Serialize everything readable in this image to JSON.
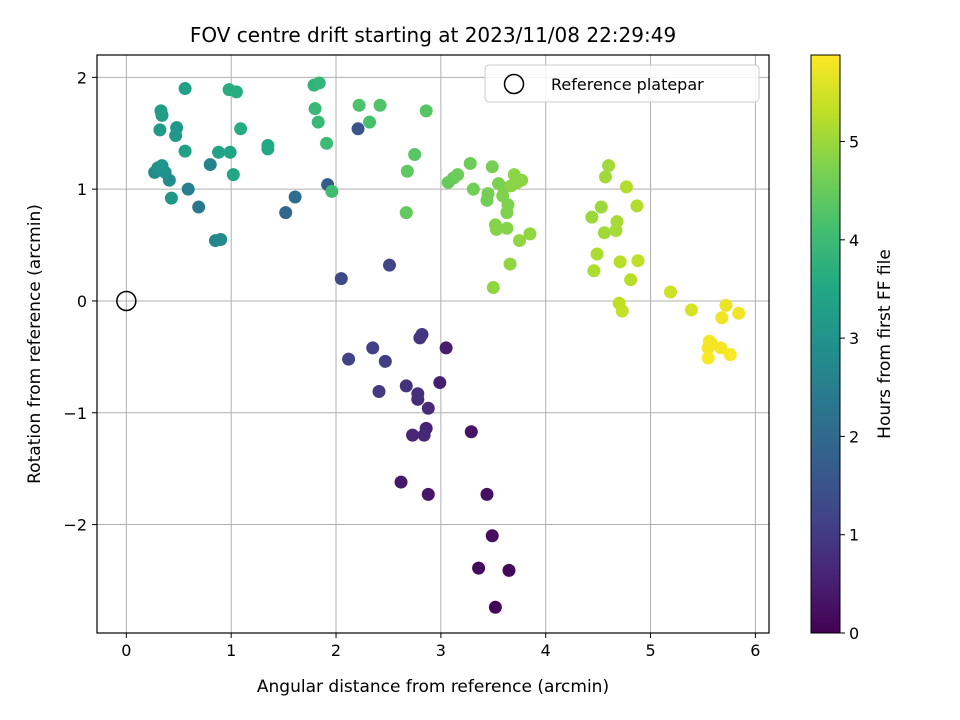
{
  "chart_data": {
    "type": "scatter",
    "title": "FOV centre drift starting at 2023/11/08 22:29:49",
    "xlabel": "Angular distance from reference (arcmin)",
    "ylabel": "Rotation from reference (arcmin)",
    "xlim": [
      -0.28,
      6.13
    ],
    "ylim": [
      -2.97,
      2.2
    ],
    "xticks": [
      0,
      1,
      2,
      3,
      4,
      5,
      6
    ],
    "xtick_labels": [
      "0",
      "1",
      "2",
      "3",
      "4",
      "5",
      "6"
    ],
    "yticks": [
      -2,
      -1,
      0,
      1,
      2
    ],
    "ytick_labels": [
      "−2",
      "−1",
      "0",
      "1",
      "2"
    ],
    "grid": true,
    "legend": {
      "placement": "top-right",
      "entries": [
        "Reference platepar"
      ]
    },
    "reference": {
      "x": 0,
      "y": 0
    },
    "colorbar": {
      "label": "Hours from first FF file",
      "colormap": "viridis",
      "range": [
        0,
        5.88
      ],
      "ticks": [
        0,
        1,
        2,
        3,
        4,
        5
      ],
      "tick_labels": [
        "0",
        "1",
        "2",
        "3",
        "4",
        "5"
      ]
    },
    "points": [
      [
        3.52,
        -2.74,
        0.05
      ],
      [
        3.65,
        -2.41,
        0.1
      ],
      [
        3.36,
        -2.39,
        0.15
      ],
      [
        3.49,
        -2.1,
        0.2
      ],
      [
        3.44,
        -1.73,
        0.25
      ],
      [
        3.29,
        -1.17,
        0.3
      ],
      [
        2.88,
        -1.73,
        0.35
      ],
      [
        2.62,
        -1.62,
        0.4
      ],
      [
        3.05,
        -0.42,
        0.45
      ],
      [
        2.99,
        -0.73,
        0.5
      ],
      [
        2.86,
        -1.14,
        0.55
      ],
      [
        2.73,
        -1.2,
        0.6
      ],
      [
        2.84,
        -1.2,
        0.65
      ],
      [
        2.88,
        -0.96,
        0.7
      ],
      [
        2.78,
        -0.88,
        0.75
      ],
      [
        2.78,
        -0.83,
        0.8
      ],
      [
        2.67,
        -0.76,
        0.85
      ],
      [
        2.8,
        -0.33,
        0.9
      ],
      [
        2.82,
        -0.3,
        0.95
      ],
      [
        2.41,
        -0.81,
        1.0
      ],
      [
        2.47,
        -0.54,
        1.05
      ],
      [
        2.35,
        -0.42,
        1.1
      ],
      [
        2.12,
        -0.52,
        1.15
      ],
      [
        2.51,
        0.32,
        1.2
      ],
      [
        2.05,
        0.2,
        1.3
      ],
      [
        2.21,
        1.54,
        1.5
      ],
      [
        1.92,
        1.04,
        1.7
      ],
      [
        1.52,
        0.79,
        1.95
      ],
      [
        1.61,
        0.93,
        2.1
      ],
      [
        0.69,
        0.84,
        2.35
      ],
      [
        0.59,
        1.0,
        2.5
      ],
      [
        0.8,
        1.22,
        2.6
      ],
      [
        0.85,
        0.54,
        2.7
      ],
      [
        0.9,
        0.55,
        2.75
      ],
      [
        0.27,
        1.15,
        2.8
      ],
      [
        0.41,
        1.08,
        2.85
      ],
      [
        0.33,
        1.19,
        2.9
      ],
      [
        0.37,
        1.15,
        2.95
      ],
      [
        0.3,
        1.19,
        3.0
      ],
      [
        0.34,
        1.21,
        3.05
      ],
      [
        0.43,
        0.92,
        3.1
      ],
      [
        0.47,
        1.48,
        3.15
      ],
      [
        0.48,
        1.55,
        3.15
      ],
      [
        0.32,
        1.53,
        3.2
      ],
      [
        0.33,
        1.7,
        3.25
      ],
      [
        0.34,
        1.66,
        3.25
      ],
      [
        0.56,
        1.34,
        3.3
      ],
      [
        0.56,
        1.9,
        3.3
      ],
      [
        0.88,
        1.33,
        3.4
      ],
      [
        0.99,
        1.33,
        3.45
      ],
      [
        1.02,
        1.13,
        3.5
      ],
      [
        1.35,
        1.36,
        3.55
      ],
      [
        1.35,
        1.39,
        3.55
      ],
      [
        1.09,
        1.54,
        3.6
      ],
      [
        1.05,
        1.87,
        3.65
      ],
      [
        0.98,
        1.89,
        3.65
      ],
      [
        1.79,
        1.93,
        3.8
      ],
      [
        1.84,
        1.95,
        3.85
      ],
      [
        1.8,
        1.72,
        3.9
      ],
      [
        1.83,
        1.6,
        3.95
      ],
      [
        1.91,
        1.41,
        4.0
      ],
      [
        1.96,
        0.98,
        4.05
      ],
      [
        2.32,
        1.6,
        4.15
      ],
      [
        2.22,
        1.75,
        4.2
      ],
      [
        2.42,
        1.75,
        4.25
      ],
      [
        2.86,
        1.7,
        4.3
      ],
      [
        2.75,
        1.31,
        4.35
      ],
      [
        2.68,
        1.16,
        4.4
      ],
      [
        2.67,
        0.79,
        4.45
      ],
      [
        3.07,
        1.06,
        4.5
      ],
      [
        3.12,
        1.1,
        4.5
      ],
      [
        3.16,
        1.13,
        4.55
      ],
      [
        3.28,
        1.23,
        4.55
      ],
      [
        3.31,
        1.0,
        4.6
      ],
      [
        3.44,
        0.9,
        4.6
      ],
      [
        3.45,
        0.96,
        4.65
      ],
      [
        3.49,
        1.2,
        4.65
      ],
      [
        3.55,
        1.05,
        4.7
      ],
      [
        3.6,
        1.01,
        4.7
      ],
      [
        3.59,
        0.94,
        4.75
      ],
      [
        3.64,
        0.86,
        4.75
      ],
      [
        3.63,
        0.79,
        4.75
      ],
      [
        3.52,
        0.68,
        4.8
      ],
      [
        3.53,
        0.64,
        4.8
      ],
      [
        3.63,
        0.65,
        4.8
      ],
      [
        3.7,
        1.13,
        4.85
      ],
      [
        3.73,
        1.06,
        4.85
      ],
      [
        3.77,
        1.08,
        4.85
      ],
      [
        3.67,
        1.03,
        4.85
      ],
      [
        3.5,
        0.12,
        4.9
      ],
      [
        3.66,
        0.33,
        4.9
      ],
      [
        3.75,
        0.54,
        4.9
      ],
      [
        3.85,
        0.6,
        4.9
      ],
      [
        4.44,
        0.75,
        5.0
      ],
      [
        4.53,
        0.84,
        5.0
      ],
      [
        4.57,
        1.11,
        5.05
      ],
      [
        4.6,
        1.21,
        5.05
      ],
      [
        4.56,
        0.61,
        5.05
      ],
      [
        4.68,
        0.71,
        5.1
      ],
      [
        4.67,
        0.63,
        5.1
      ],
      [
        4.49,
        0.42,
        5.15
      ],
      [
        4.46,
        0.27,
        5.15
      ],
      [
        4.77,
        1.02,
        5.2
      ],
      [
        4.87,
        0.85,
        5.2
      ],
      [
        4.71,
        0.35,
        5.25
      ],
      [
        4.81,
        0.19,
        5.25
      ],
      [
        4.88,
        0.36,
        5.3
      ],
      [
        4.7,
        -0.02,
        5.3
      ],
      [
        4.73,
        -0.09,
        5.35
      ],
      [
        5.19,
        0.08,
        5.45
      ],
      [
        5.39,
        -0.08,
        5.55
      ],
      [
        5.72,
        -0.04,
        5.7
      ],
      [
        5.84,
        -0.11,
        5.75
      ],
      [
        5.68,
        -0.15,
        5.75
      ],
      [
        5.56,
        -0.36,
        5.8
      ],
      [
        5.58,
        -0.38,
        5.8
      ],
      [
        5.55,
        -0.42,
        5.8
      ],
      [
        5.67,
        -0.42,
        5.8
      ],
      [
        5.76,
        -0.48,
        5.85
      ],
      [
        5.55,
        -0.51,
        5.85
      ]
    ]
  }
}
